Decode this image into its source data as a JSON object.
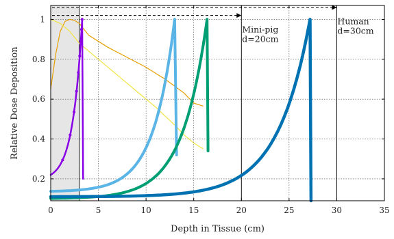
{
  "chart_data": {
    "type": "line",
    "xlabel": "Depth in Tissue (cm)",
    "ylabel": "Relative Dose Deposition",
    "xlim": [
      0,
      35
    ],
    "ylim": [
      0.09,
      1.07
    ],
    "x_ticks": [
      0,
      5,
      10,
      15,
      20,
      25,
      30,
      35
    ],
    "y_ticks": [
      0.2,
      0.4,
      0.6,
      0.8,
      1
    ],
    "x_tick_labels": [
      "0",
      "5",
      "10",
      "15",
      "20",
      "25",
      "30",
      "35"
    ],
    "y_tick_labels": [
      "0.2",
      "0.4",
      "0.6",
      "0.8",
      "1"
    ],
    "grid": true,
    "shaded_region": {
      "x": [
        0,
        3
      ],
      "color": "#e6e6e6"
    },
    "vertical_markers": [
      3,
      20,
      30
    ],
    "annotations": [
      {
        "lines": [
          "Mini-pig",
          "d=20cm"
        ],
        "x": 20.0,
        "y": 0.99,
        "arrow_y": 1.02
      },
      {
        "lines": [
          "Human",
          "d=30cm"
        ],
        "x": 30.0,
        "y": 1.03,
        "arrow_y": 1.06
      }
    ],
    "bragg_curves": [
      {
        "color": "#8a00e6",
        "peak": 3.3,
        "start_y": 0.19,
        "k": 1.0,
        "drop_end": 3.4,
        "drop_y": 0.2,
        "width": 2.5
      },
      {
        "color": "#5ab4e6",
        "peak": 13.0,
        "start_y": 0.135,
        "k": 2.2,
        "drop_end": 13.2,
        "drop_y": 0.32,
        "width": 4
      },
      {
        "color": "#009e73",
        "peak": 16.4,
        "start_y": 0.1,
        "k": 2.6,
        "drop_end": 16.5,
        "drop_y": 0.34,
        "width": 4
      },
      {
        "color": "#0072b2",
        "peak": 27.2,
        "start_y": 0.11,
        "k": 3.4,
        "drop_end": 27.3,
        "drop_y": 0.09,
        "width": 4.5
      }
    ],
    "depth_dose_curves": [
      {
        "color": "#e69f00",
        "points": [
          [
            0,
            0.65
          ],
          [
            0.5,
            0.82
          ],
          [
            1,
            0.94
          ],
          [
            1.5,
            0.99
          ],
          [
            2,
            1.0
          ],
          [
            2.5,
            0.995
          ],
          [
            3,
            0.98
          ],
          [
            4,
            0.92
          ],
          [
            6,
            0.86
          ],
          [
            8,
            0.81
          ],
          [
            10,
            0.76
          ],
          [
            12,
            0.7
          ],
          [
            14,
            0.63
          ],
          [
            15,
            0.58
          ],
          [
            16,
            0.565
          ]
        ]
      },
      {
        "color": "#f0e442",
        "points": [
          [
            0,
            1.0
          ],
          [
            1,
            0.98
          ],
          [
            2,
            0.94
          ],
          [
            3,
            0.88
          ],
          [
            5,
            0.8
          ],
          [
            7,
            0.72
          ],
          [
            9,
            0.64
          ],
          [
            11,
            0.56
          ],
          [
            13,
            0.47
          ],
          [
            14,
            0.42
          ],
          [
            15,
            0.38
          ],
          [
            16,
            0.35
          ]
        ]
      }
    ]
  }
}
